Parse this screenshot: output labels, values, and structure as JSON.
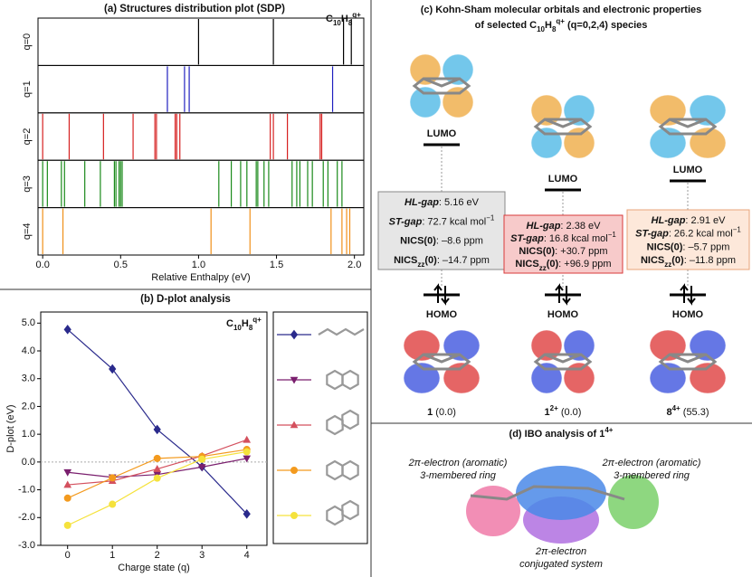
{
  "chart_data": [
    {
      "type": "rug",
      "title": "(a) Structures distribution plot (SDP)",
      "formula": [
        {
          "t": "C",
          "s": "b"
        },
        {
          "t": "10",
          "s": "bsub"
        },
        {
          "t": "H",
          "s": "b"
        },
        {
          "t": "8",
          "s": "bsub"
        },
        {
          "t": "q+",
          "s": "bsup"
        }
      ],
      "x_label": "Relative Enthalpy (eV)",
      "xlim": [
        -0.03,
        2.06
      ],
      "xticks": [
        {
          "value": 0,
          "label": "0.0"
        },
        {
          "value": 0.5,
          "label": "0.5"
        },
        {
          "value": 1,
          "label": "1.0"
        },
        {
          "value": 1.5,
          "label": "1.5"
        },
        {
          "value": 2,
          "label": "2.0"
        }
      ],
      "series": [
        {
          "name": "q=0",
          "color": "#000000",
          "values": [
            1.0,
            1.48,
            1.93,
            1.98
          ]
        },
        {
          "name": "q=1",
          "color": "#1f1fbf",
          "values": [
            0.8,
            0.91,
            0.94,
            1.86
          ]
        },
        {
          "name": "q=2",
          "color": "#d62020",
          "values": [
            0.0,
            0.17,
            0.39,
            0.58,
            0.72,
            0.73,
            0.85,
            0.86,
            0.88,
            1.46,
            1.48,
            1.57,
            1.78,
            1.79
          ]
        },
        {
          "name": "q=3",
          "color": "#1a8a1a",
          "values": [
            0.0,
            0.03,
            0.12,
            0.14,
            0.27,
            0.37,
            0.46,
            0.47,
            0.49,
            0.5,
            0.51,
            1.13,
            1.21,
            1.27,
            1.31,
            1.37,
            1.38,
            1.42,
            1.45,
            1.6,
            1.63,
            1.65,
            1.7,
            1.73,
            1.8,
            1.83,
            1.89,
            1.92
          ]
        },
        {
          "name": "q=4",
          "color": "#f0901a",
          "values": [
            0.0,
            0.13,
            1.08,
            1.33,
            1.85,
            1.92,
            1.95,
            1.97
          ]
        }
      ]
    },
    {
      "type": "line",
      "title": "(b) D-plot analysis",
      "formula": [
        {
          "t": "C",
          "s": "b"
        },
        {
          "t": "10",
          "s": "bsub"
        },
        {
          "t": "H",
          "s": "b"
        },
        {
          "t": "8",
          "s": "bsub"
        },
        {
          "t": "q+",
          "s": "bsup"
        }
      ],
      "x_label": "Charge state (q)",
      "y_label": "D-plot (eV)",
      "x": [
        0,
        1,
        2,
        3,
        4
      ],
      "xlim": [
        -0.6,
        4.45
      ],
      "xticks": [
        0,
        1,
        2,
        3,
        4
      ],
      "ylim": [
        -3.0,
        5.4
      ],
      "yticks": [
        {
          "value": -3,
          "label": "-3.0"
        },
        {
          "value": -2,
          "label": "-2.0"
        },
        {
          "value": -1,
          "label": "-1.0"
        },
        {
          "value": 0,
          "label": "0.0"
        },
        {
          "value": 1,
          "label": "1.0"
        },
        {
          "value": 2,
          "label": "2.0"
        },
        {
          "value": 3,
          "label": "3.0"
        },
        {
          "value": 4,
          "label": "4.0"
        },
        {
          "value": 5,
          "label": "5.0"
        }
      ],
      "zero_line": true,
      "series": [
        {
          "color": "#2a2a8c",
          "marker": "diamond",
          "values": [
            4.77,
            3.35,
            1.17,
            -0.17,
            -1.87
          ]
        },
        {
          "color": "#7a1f6e",
          "marker": "triangle-down",
          "values": [
            -0.37,
            -0.55,
            -0.45,
            -0.18,
            0.13
          ]
        },
        {
          "color": "#d4505e",
          "marker": "triangle-up",
          "values": [
            -0.82,
            -0.68,
            -0.25,
            0.22,
            0.8
          ]
        },
        {
          "color": "#f39a1e",
          "marker": "circle",
          "values": [
            -1.3,
            -0.57,
            0.13,
            0.2,
            0.45
          ]
        },
        {
          "color": "#f5e23c",
          "marker": "circle",
          "values": [
            -2.28,
            -1.52,
            -0.58,
            0.1,
            0.37
          ]
        }
      ]
    }
  ],
  "panel_c": {
    "title": [
      {
        "t": "(c) Kohn-Sham molecular orbitals and electronic properties",
        "s": "b"
      }
    ],
    "subtitle": [
      {
        "t": "of selected C",
        "s": "b"
      },
      {
        "t": "10",
        "s": "bsub"
      },
      {
        "t": "H",
        "s": "b"
      },
      {
        "t": "8",
        "s": "bsub"
      },
      {
        "t": "q+",
        "s": "bsup"
      },
      {
        "t": " (q=0,2,4) species",
        "s": "b"
      }
    ],
    "columns": [
      {
        "lumo": "LUMO",
        "homo": "HOMO",
        "props": [
          [
            {
              "t": "HL-gap",
              "s": "bi"
            },
            {
              "t": ": 5.16 eV"
            }
          ],
          [
            {
              "t": "ST-gap",
              "s": "bi"
            },
            {
              "t": ": 72.7 kcal mol"
            },
            {
              "t": "−1",
              "s": "sup"
            }
          ],
          [
            {
              "t": "NICS(0)",
              "s": "b"
            },
            {
              "t": ": –8.6 ppm"
            }
          ],
          [
            {
              "t": "NICS",
              "s": "b"
            },
            {
              "t": "zz",
              "s": "bsub"
            },
            {
              "t": "(0)",
              "s": "b"
            },
            {
              "t": ": –14.7 ppm"
            }
          ]
        ],
        "caption": [
          {
            "t": "1",
            "s": "b"
          },
          {
            "t": " (0.0)"
          }
        ]
      },
      {
        "lumo": "LUMO",
        "homo": "HOMO",
        "props": [
          [
            {
              "t": "HL-gap",
              "s": "bi"
            },
            {
              "t": ": 2.38 eV"
            }
          ],
          [
            {
              "t": "ST-gap",
              "s": "bi"
            },
            {
              "t": ": 16.8 kcal mol"
            },
            {
              "t": "−1",
              "s": "sup"
            }
          ],
          [
            {
              "t": "NICS(0)",
              "s": "b"
            },
            {
              "t": ": +30.7 ppm"
            }
          ],
          [
            {
              "t": "NICS",
              "s": "b"
            },
            {
              "t": "zz",
              "s": "bsub"
            },
            {
              "t": "(0)",
              "s": "b"
            },
            {
              "t": ": +96.9 ppm"
            }
          ]
        ],
        "caption": [
          {
            "t": "1",
            "s": "b"
          },
          {
            "t": "2+",
            "s": "bsup"
          },
          {
            "t": " (0.0)"
          }
        ]
      },
      {
        "lumo": "LUMO",
        "homo": "HOMO",
        "props": [
          [
            {
              "t": "HL-gap",
              "s": "bi"
            },
            {
              "t": ": 2.91 eV"
            }
          ],
          [
            {
              "t": "ST-gap",
              "s": "bi"
            },
            {
              "t": ": 26.2 kcal mol"
            },
            {
              "t": "−1",
              "s": "sup"
            }
          ],
          [
            {
              "t": "NICS(0)",
              "s": "b"
            },
            {
              "t": ": –5.7 ppm"
            }
          ],
          [
            {
              "t": "NICS",
              "s": "b"
            },
            {
              "t": "zz",
              "s": "bsub"
            },
            {
              "t": "(0)",
              "s": "b"
            },
            {
              "t": ": –11.8 ppm"
            }
          ]
        ],
        "caption": [
          {
            "t": "8",
            "s": "b"
          },
          {
            "t": "4+",
            "s": "bsup"
          },
          {
            "t": " (55.3)"
          }
        ]
      }
    ]
  },
  "panel_d": {
    "title": [
      {
        "t": "(d) IBO analysis of ",
        "s": "b"
      },
      {
        "t": "1",
        "s": "b"
      },
      {
        "t": "4+",
        "s": "bsup"
      }
    ],
    "labels": [
      [
        "2π-electron (aromatic)",
        "3-membered ring"
      ],
      [
        "2π-electron (aromatic)",
        "3-membered ring"
      ],
      [
        "2π-electron",
        "conjugated system"
      ]
    ]
  }
}
